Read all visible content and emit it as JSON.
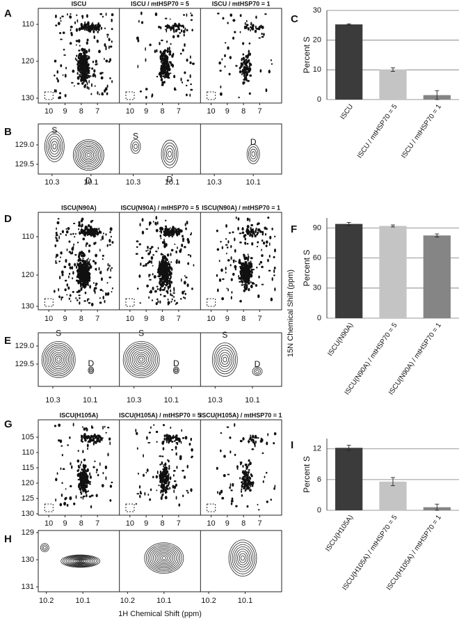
{
  "figure_labels": {
    "x_axis": "1H Chemical Shift (ppm)",
    "y_axis": "15N Chemical Shift (ppm)"
  },
  "panels": [
    {
      "letter": "A",
      "titles": [
        "ISCU",
        "ISCU / mtHSP70 = 5",
        "ISCU / mtHSP70 = 1"
      ],
      "yticks": [
        "110",
        "120",
        "130"
      ],
      "xticks": [
        "10",
        "9",
        "8",
        "7"
      ]
    },
    {
      "letter": "B",
      "yticks": [
        "129.0",
        "129.5"
      ],
      "xticks": [
        "10.3",
        "10.1"
      ],
      "annotations": [
        [
          "S",
          "D"
        ],
        [
          "S",
          "D"
        ],
        [
          "D"
        ]
      ]
    },
    {
      "letter": "D",
      "titles": [
        "ISCU(N90A)",
        "ISCU(N90A) / mtHSP70 = 5",
        "ISCU(N90A) / mtHSP70 = 1"
      ],
      "yticks": [
        "110",
        "120",
        "130"
      ],
      "xticks": [
        "10",
        "9",
        "8",
        "7"
      ]
    },
    {
      "letter": "E",
      "yticks": [
        "129.0",
        "129.5"
      ],
      "xticks": [
        "10.3",
        "10.1"
      ],
      "annotations": [
        [
          "S",
          "D"
        ],
        [
          "S",
          "D"
        ],
        [
          "S",
          "D"
        ]
      ]
    },
    {
      "letter": "G",
      "titles": [
        "ISCU(H105A)",
        "ISCU(H105A) / mtHSP70 = 5",
        "ISCU(H105A) / mtHSP70 = 1"
      ],
      "yticks": [
        "105",
        "110",
        "115",
        "120",
        "125",
        "130"
      ],
      "xticks": [
        "10",
        "9",
        "8",
        "7"
      ]
    },
    {
      "letter": "H",
      "yticks": [
        "129",
        "130",
        "131"
      ],
      "xticks": [
        "10.2",
        "10.1"
      ]
    }
  ],
  "chart_data": [
    {
      "type": "bar",
      "letter": "C",
      "ylabel": "Percent S",
      "categories": [
        "ISCU",
        "ISCU / mtHSP70 = 5",
        "ISCU / mtHSP70 = 1"
      ],
      "values": [
        25.3,
        10.1,
        1.5
      ],
      "errors": [
        0.2,
        0.6,
        1.5
      ],
      "colors": [
        "#3b3b3b",
        "#c4c4c4",
        "#858585"
      ],
      "ylim": [
        0,
        30
      ],
      "yticks": [
        0,
        10,
        20,
        30
      ],
      "grid": true
    },
    {
      "type": "bar",
      "letter": "F",
      "ylabel": "Percent S",
      "categories": [
        "ISCU(N90A)",
        "ISCU(N90A) / mtHSP70 = 5",
        "ISCU(N90A) / mtHSP70 = 1"
      ],
      "values": [
        94,
        92,
        82.5
      ],
      "errors": [
        1.5,
        1,
        1.5
      ],
      "colors": [
        "#3b3b3b",
        "#c4c4c4",
        "#858585"
      ],
      "ylim": [
        0,
        100
      ],
      "yticks": [
        0,
        30,
        60,
        90
      ],
      "grid": true
    },
    {
      "type": "bar",
      "letter": "I",
      "ylabel": "Percent S",
      "categories": [
        "ISCU(H105A)",
        "ISCU(H105A) / mtHSP70 = 5",
        "ISCU(H105A) / mtHSP70 = 1"
      ],
      "values": [
        12.2,
        5.6,
        0.6
      ],
      "errors": [
        0.5,
        0.8,
        0.6
      ],
      "colors": [
        "#3b3b3b",
        "#c4c4c4",
        "#858585"
      ],
      "ylim": [
        0,
        14
      ],
      "yticks": [
        0,
        6,
        12
      ],
      "grid": true
    }
  ]
}
